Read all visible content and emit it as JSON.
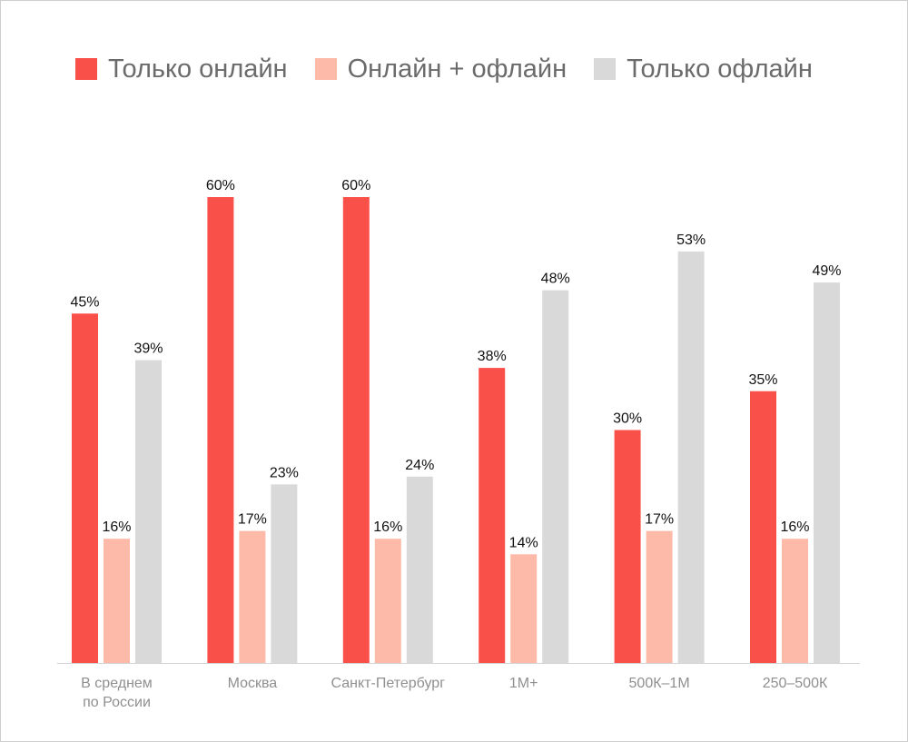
{
  "chart_data": {
    "type": "bar",
    "categories": [
      [
        "В среднем",
        "по России"
      ],
      [
        "Москва"
      ],
      [
        "Санкт-Петербург"
      ],
      [
        "1М+"
      ],
      [
        "500К–1М"
      ],
      [
        "250–500К"
      ]
    ],
    "series": [
      {
        "name": "Только онлайн",
        "color": "#fa504a",
        "values": [
          45,
          60,
          60,
          38,
          30,
          35
        ]
      },
      {
        "name": "Онлайн + офлайн",
        "color": "#fdbaa8",
        "values": [
          16,
          17,
          16,
          14,
          17,
          16
        ]
      },
      {
        "name": "Только офлайн",
        "color": "#d9d9d9",
        "values": [
          39,
          23,
          24,
          48,
          53,
          49
        ]
      }
    ],
    "value_suffix": "%",
    "ylim": [
      0,
      60
    ],
    "grid": false,
    "legend_position": "top-left"
  }
}
